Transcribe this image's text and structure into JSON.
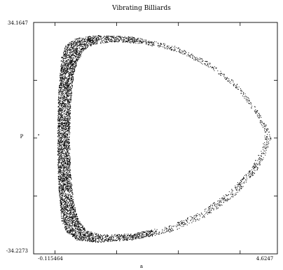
{
  "chart_data": {
    "type": "scatter",
    "title": "Vibrating Billiards",
    "xlabel": "a",
    "ylabel": "P",
    "xlim": [
      -0.115464,
      4.6247
    ],
    "ylim": [
      -34.2273,
      34.1647
    ],
    "x_tick_labels": [
      "-0.115464",
      "4.6247"
    ],
    "y_tick_labels": [
      "34.1647",
      "-34.2273"
    ],
    "grid": false,
    "legend": "none",
    "point_color": "#000000",
    "series": [
      {
        "description_shape": "dense crescent band on left edge tapering into thin closed loop",
        "outer_boundary": {
          "x": [
            0.42,
            0.5,
            0.7,
            1.1,
            1.8,
            2.6,
            3.3,
            3.85,
            4.25,
            4.45,
            4.5,
            4.42,
            4.2,
            3.8,
            3.2,
            2.5,
            1.8,
            1.1,
            0.7,
            0.5,
            0.42,
            0.36,
            0.34,
            0.36,
            0.42
          ],
          "y": [
            24.0,
            27.5,
            29.5,
            30.5,
            30.0,
            27.5,
            22.5,
            16.0,
            8.0,
            3.0,
            0.0,
            -4.0,
            -10.0,
            -17.0,
            -23.5,
            -28.0,
            -30.0,
            -30.8,
            -30.0,
            -27.5,
            -24.0,
            -14.0,
            0.0,
            14.0,
            24.0
          ]
        },
        "inner_boundary": {
          "x": [
            0.72,
            0.85,
            1.05,
            1.4,
            2.0,
            2.7,
            3.35,
            3.85,
            4.2,
            4.35,
            4.38,
            4.3,
            4.1,
            3.7,
            3.15,
            2.5,
            1.8,
            1.2,
            0.9,
            0.75,
            0.66,
            0.6,
            0.58,
            0.6,
            0.66,
            0.72
          ],
          "y": [
            22.0,
            26.0,
            27.8,
            28.5,
            28.0,
            25.5,
            20.5,
            14.5,
            7.0,
            2.5,
            0.0,
            -3.5,
            -9.0,
            -15.5,
            -21.5,
            -26.0,
            -28.2,
            -28.5,
            -27.2,
            -24.0,
            -19.0,
            -10.0,
            0.0,
            10.0,
            19.0,
            22.0
          ]
        },
        "isolated_point": {
          "x": -0.02,
          "y": 1.0
        }
      }
    ]
  }
}
